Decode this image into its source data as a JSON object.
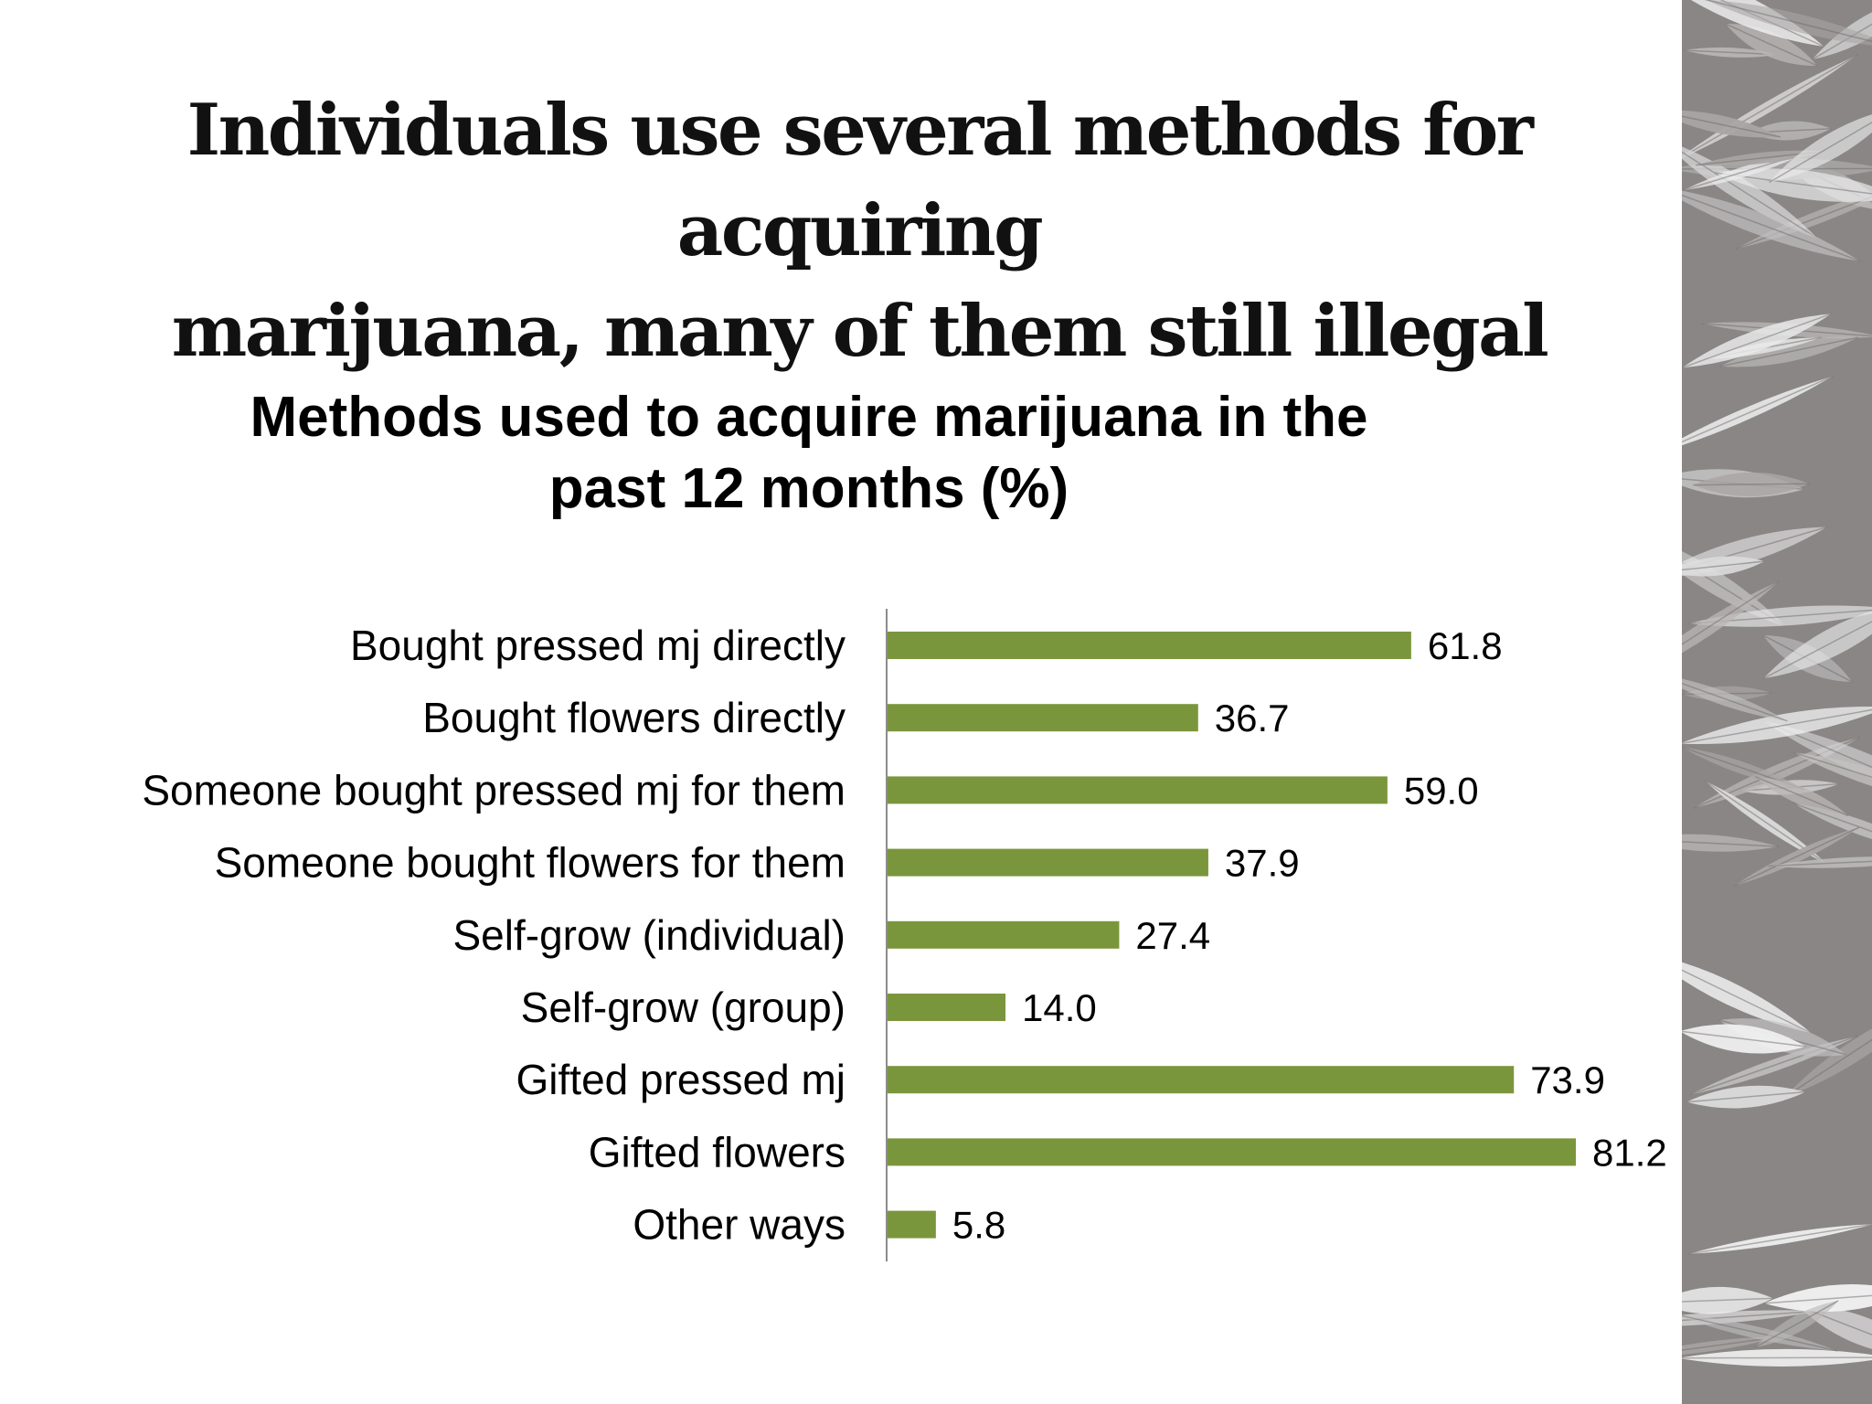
{
  "slide": {
    "title_lines": [
      "Individuals use several methods for acquiring",
      "marijuana, many of them still illegal"
    ],
    "accent_color": "#7a963c",
    "side_image": "cannabis-leaf-texture-photo (grayscale, decorative)"
  },
  "chart_data": {
    "type": "bar",
    "orientation": "horizontal",
    "title": "Methods used to acquire marijuana in the past 12 months (%)",
    "title_lines": [
      "Methods used to acquire marijuana in the",
      "past 12 months (%)"
    ],
    "categories": [
      "Bought pressed mj directly",
      "Bought flowers directly",
      "Someone bought pressed mj for them",
      "Someone bought flowers for them",
      "Self-grow (individual)",
      "Self-grow (group)",
      "Gifted pressed mj",
      "Gifted flowers",
      "Other ways"
    ],
    "values": [
      61.8,
      36.7,
      59.0,
      37.9,
      27.4,
      14.0,
      73.9,
      81.2,
      5.8
    ],
    "value_labels": [
      "61.8",
      "36.7",
      "59.0",
      "37.9",
      "27.4",
      "14.0",
      "73.9",
      "81.2",
      "5.8"
    ],
    "xlim": [
      0,
      100
    ],
    "grid": false,
    "legend": "none",
    "bar_color": "#7a963c",
    "axis_color": "#8c8c8c"
  }
}
